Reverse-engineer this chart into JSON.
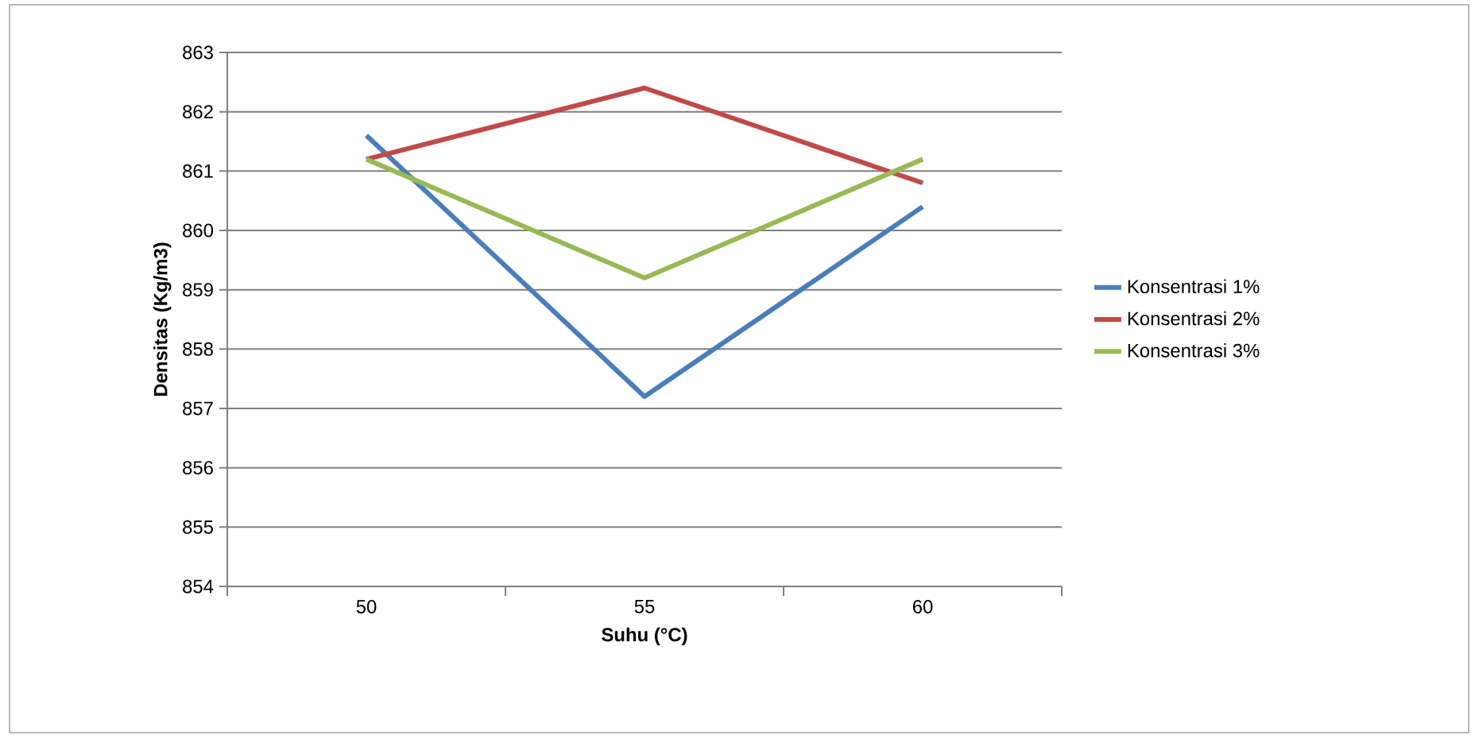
{
  "chart_data": {
    "type": "line",
    "xlabel": "Suhu (°C)",
    "ylabel": "Densitas (Kg/m3)",
    "categories": [
      "50",
      "55",
      "60"
    ],
    "series": [
      {
        "name": "Konsentrasi 1%",
        "color": "#4a7ebb",
        "values": [
          861.6,
          857.2,
          860.4
        ]
      },
      {
        "name": "Konsentrasi 2%",
        "color": "#be4b48",
        "values": [
          861.2,
          862.4,
          860.8
        ]
      },
      {
        "name": "Konsentrasi 3%",
        "color": "#98b954",
        "values": [
          861.2,
          859.2,
          861.2
        ]
      }
    ],
    "ylim": [
      854,
      863
    ],
    "yticks": [
      854,
      855,
      856,
      857,
      858,
      859,
      860,
      861,
      862,
      863
    ],
    "grid": "y",
    "legend": "right",
    "marker": "none",
    "line_style": "solid"
  }
}
